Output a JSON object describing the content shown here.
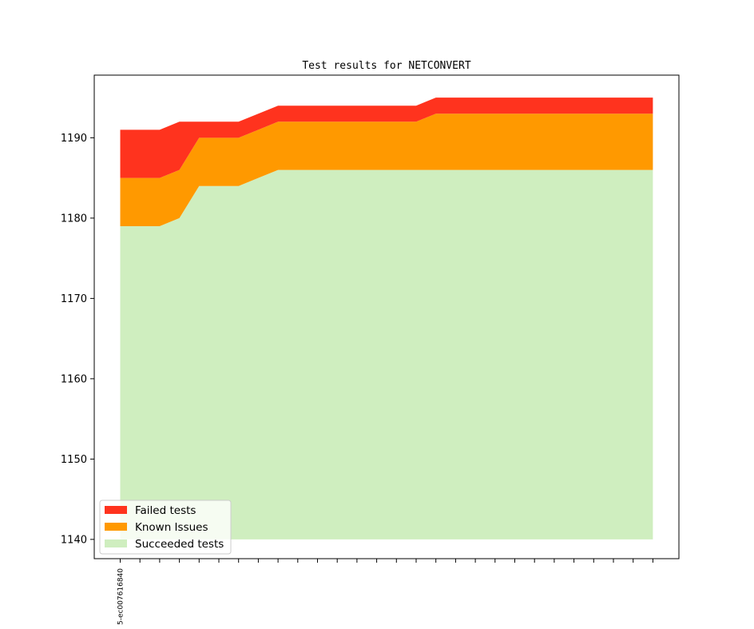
{
  "chart_data": {
    "type": "area",
    "title": "Test results for NETCONVERT",
    "xlabel": "",
    "ylabel": "",
    "ylim": [
      1137.6,
      1197.8
    ],
    "yticks": [
      1140,
      1150,
      1160,
      1170,
      1180,
      1190
    ],
    "x": [
      0,
      1,
      2,
      3,
      4,
      5,
      6,
      7,
      8,
      9,
      10,
      11,
      12,
      13,
      14,
      15,
      16,
      17,
      18,
      19,
      20,
      21,
      22,
      23,
      24,
      25,
      26,
      27
    ],
    "xtick_labels": [
      "5-ec007616840"
    ],
    "baseline": 1140,
    "series": [
      {
        "name": "Succeeded tests",
        "color": "#cfeebf",
        "values": [
          1179,
          1179,
          1179,
          1180,
          1184,
          1184,
          1184,
          1185,
          1186,
          1186,
          1186,
          1186,
          1186,
          1186,
          1186,
          1186,
          1186,
          1186,
          1186,
          1186,
          1186,
          1186,
          1186,
          1186,
          1186,
          1186,
          1186,
          1186
        ]
      },
      {
        "name": "Known Issues",
        "color": "#ff9900",
        "values": [
          1185,
          1185,
          1185,
          1186,
          1190,
          1190,
          1190,
          1191,
          1192,
          1192,
          1192,
          1192,
          1192,
          1192,
          1192,
          1192,
          1193,
          1193,
          1193,
          1193,
          1193,
          1193,
          1193,
          1193,
          1193,
          1193,
          1193,
          1193
        ]
      },
      {
        "name": "Failed tests",
        "color": "#ff331e",
        "values": [
          1191,
          1191,
          1191,
          1192,
          1192,
          1192,
          1192,
          1193,
          1194,
          1194,
          1194,
          1194,
          1194,
          1194,
          1194,
          1194,
          1195,
          1195,
          1195,
          1195,
          1195,
          1195,
          1195,
          1195,
          1195,
          1195,
          1195,
          1195
        ]
      }
    ],
    "legend": {
      "position": "lower-left",
      "entries": [
        "Failed tests",
        "Known Issues",
        "Succeeded tests"
      ]
    },
    "grid": false
  }
}
